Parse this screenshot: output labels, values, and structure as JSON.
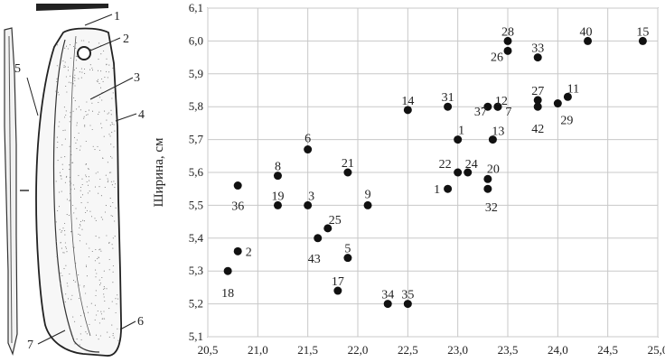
{
  "drawing": {
    "callouts": [
      "1",
      "2",
      "3",
      "4",
      "5",
      "6",
      "7"
    ]
  },
  "chart_data": {
    "type": "scatter",
    "xlabel": "",
    "ylabel": "Ширина, см",
    "xlim": [
      20.5,
      25.0
    ],
    "ylim": [
      5.1,
      6.1
    ],
    "grid": true,
    "x_ticks": [
      "20,5",
      "21,0",
      "21,5",
      "22,0",
      "22,5",
      "23,0",
      "23,5",
      "24,0",
      "24,5",
      "25,0"
    ],
    "y_ticks": [
      "5,1",
      "5,2",
      "5,3",
      "5,4",
      "5,5",
      "5,6",
      "5,7",
      "5,8",
      "5,9",
      "6,0",
      "6,1"
    ],
    "points": [
      {
        "label": "28",
        "x": 23.5,
        "y": 6.0
      },
      {
        "label": "26",
        "x": 23.5,
        "y": 5.97
      },
      {
        "label": "40",
        "x": 24.3,
        "y": 6.0
      },
      {
        "label": "15",
        "x": 24.85,
        "y": 6.0
      },
      {
        "label": "33",
        "x": 23.8,
        "y": 5.95
      },
      {
        "label": "14",
        "x": 22.5,
        "y": 5.79
      },
      {
        "label": "31",
        "x": 22.9,
        "y": 5.8
      },
      {
        "label": "37",
        "x": 23.3,
        "y": 5.8
      },
      {
        "label": "7",
        "x": 23.4,
        "y": 5.8
      },
      {
        "label": "12",
        "x": 23.4,
        "y": 5.8
      },
      {
        "label": "27",
        "x": 23.8,
        "y": 5.82
      },
      {
        "label": "42",
        "x": 23.8,
        "y": 5.8
      },
      {
        "label": "29",
        "x": 24.0,
        "y": 5.81
      },
      {
        "label": "11",
        "x": 24.1,
        "y": 5.83
      },
      {
        "label": "1",
        "x": 23.0,
        "y": 5.7
      },
      {
        "label": "13",
        "x": 23.35,
        "y": 5.7
      },
      {
        "label": "6",
        "x": 21.5,
        "y": 5.67
      },
      {
        "label": "8",
        "x": 21.2,
        "y": 5.59
      },
      {
        "label": "21",
        "x": 21.9,
        "y": 5.6
      },
      {
        "label": "36",
        "x": 20.8,
        "y": 5.56
      },
      {
        "label": "22",
        "x": 23.0,
        "y": 5.6
      },
      {
        "label": "24",
        "x": 23.1,
        "y": 5.6
      },
      {
        "label": "1",
        "x": 22.9,
        "y": 5.55
      },
      {
        "label": "20",
        "x": 23.3,
        "y": 5.58
      },
      {
        "label": "32",
        "x": 23.3,
        "y": 5.55
      },
      {
        "label": "19",
        "x": 21.2,
        "y": 5.5
      },
      {
        "label": "3",
        "x": 21.5,
        "y": 5.5
      },
      {
        "label": "9",
        "x": 22.1,
        "y": 5.5
      },
      {
        "label": "25",
        "x": 21.7,
        "y": 5.43
      },
      {
        "label": "43",
        "x": 21.6,
        "y": 5.4
      },
      {
        "label": "5",
        "x": 21.9,
        "y": 5.34
      },
      {
        "label": "2",
        "x": 20.8,
        "y": 5.36
      },
      {
        "label": "18",
        "x": 20.7,
        "y": 5.3
      },
      {
        "label": "17",
        "x": 21.8,
        "y": 5.24
      },
      {
        "label": "34",
        "x": 22.3,
        "y": 5.2
      },
      {
        "label": "35",
        "x": 22.5,
        "y": 5.2
      }
    ]
  }
}
